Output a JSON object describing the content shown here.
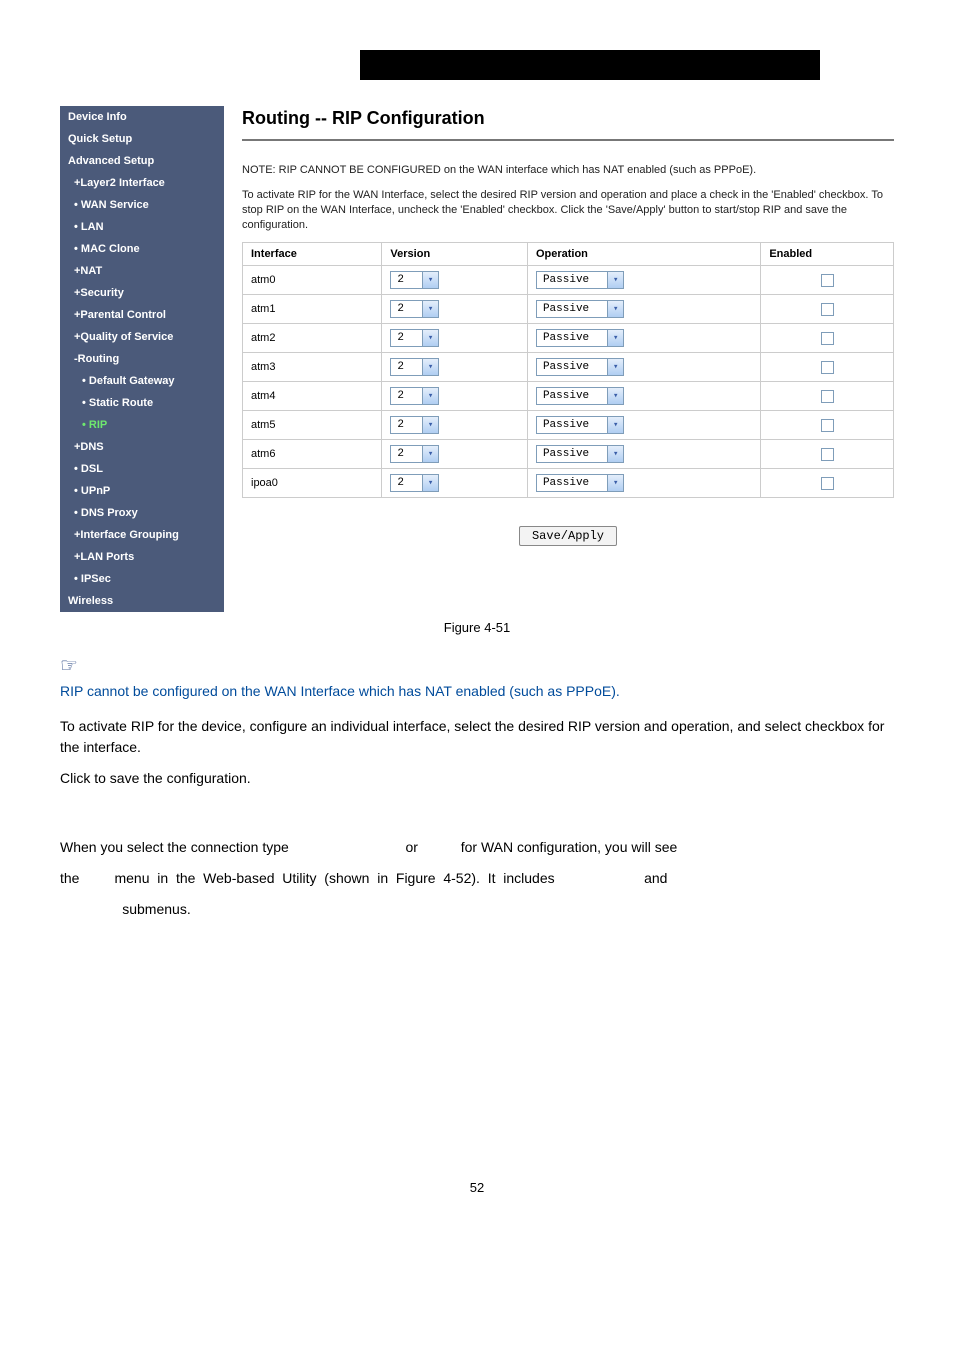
{
  "sidebar": {
    "bg_color": "#4b5a7a",
    "text_color": "#ffffff",
    "current_color": "#6ee86e",
    "items": [
      {
        "label": "Device Info",
        "level": 0
      },
      {
        "label": "Quick Setup",
        "level": 0
      },
      {
        "label": "Advanced Setup",
        "level": 0
      },
      {
        "label": "+Layer2 Interface",
        "level": 1
      },
      {
        "label": "• WAN Service",
        "level": 1
      },
      {
        "label": "• LAN",
        "level": 1
      },
      {
        "label": "• MAC Clone",
        "level": 1
      },
      {
        "label": "+NAT",
        "level": 1
      },
      {
        "label": "+Security",
        "level": 1
      },
      {
        "label": "+Parental Control",
        "level": 1
      },
      {
        "label": "+Quality of Service",
        "level": 1
      },
      {
        "label": "-Routing",
        "level": 1
      },
      {
        "label": "• Default Gateway",
        "level": 2
      },
      {
        "label": "• Static Route",
        "level": 2
      },
      {
        "label": "• RIP",
        "level": 2,
        "current": true
      },
      {
        "label": "+DNS",
        "level": 1
      },
      {
        "label": "• DSL",
        "level": 1
      },
      {
        "label": "• UPnP",
        "level": 1
      },
      {
        "label": "• DNS Proxy",
        "level": 1
      },
      {
        "label": "+Interface Grouping",
        "level": 1
      },
      {
        "label": "+LAN Ports",
        "level": 1
      },
      {
        "label": "• IPSec",
        "level": 1
      },
      {
        "label": "Wireless",
        "level": 0
      }
    ]
  },
  "content": {
    "heading": "Routing -- RIP Configuration",
    "note1": "NOTE: RIP CANNOT BE CONFIGURED on the WAN interface which has NAT enabled (such as PPPoE).",
    "note2": "To activate RIP for the WAN Interface, select the desired RIP version and operation and place a check in the 'Enabled' checkbox. To stop RIP on the WAN Interface, uncheck the 'Enabled' checkbox. Click the 'Save/Apply' button to start/stop RIP and save the configuration.",
    "save_label": "Save/Apply"
  },
  "rip_table": {
    "columns": [
      "Interface",
      "Version",
      "Operation",
      "Enabled"
    ],
    "rows": [
      {
        "iface": "atm0",
        "version": "2",
        "operation": "Passive",
        "enabled": false
      },
      {
        "iface": "atm1",
        "version": "2",
        "operation": "Passive",
        "enabled": false
      },
      {
        "iface": "atm2",
        "version": "2",
        "operation": "Passive",
        "enabled": false
      },
      {
        "iface": "atm3",
        "version": "2",
        "operation": "Passive",
        "enabled": false
      },
      {
        "iface": "atm4",
        "version": "2",
        "operation": "Passive",
        "enabled": false
      },
      {
        "iface": "atm5",
        "version": "2",
        "operation": "Passive",
        "enabled": false
      },
      {
        "iface": "atm6",
        "version": "2",
        "operation": "Passive",
        "enabled": false
      },
      {
        "iface": "ipoa0",
        "version": "2",
        "operation": "Passive",
        "enabled": false
      }
    ],
    "border_color": "#cccccc",
    "select_border": "#7f9db9",
    "arrow_bg_top": "#e4eefb",
    "arrow_bg_bottom": "#b0cef2"
  },
  "figure_caption": "Figure 4-51",
  "doc": {
    "blue_note": "RIP cannot be configured on the WAN Interface which has NAT enabled (such as PPPoE).",
    "para1": "To activate RIP for the device, configure an individual interface, select the desired RIP version and operation, and select             checkbox for the interface.",
    "para2": "Click                  to save the configuration.",
    "para3a": "When you select the connection type                              or           for WAN configuration, you will see",
    "para3b": "the         menu  in  the  Web-based  Utility  (shown  in  Figure  4-52).  It  includes                       and",
    "para3c": "                submenus."
  },
  "colors": {
    "blue_text": "#004b9b",
    "body_text": "#000000",
    "hand_icon": "#1a3a7a"
  },
  "page_number": "52"
}
